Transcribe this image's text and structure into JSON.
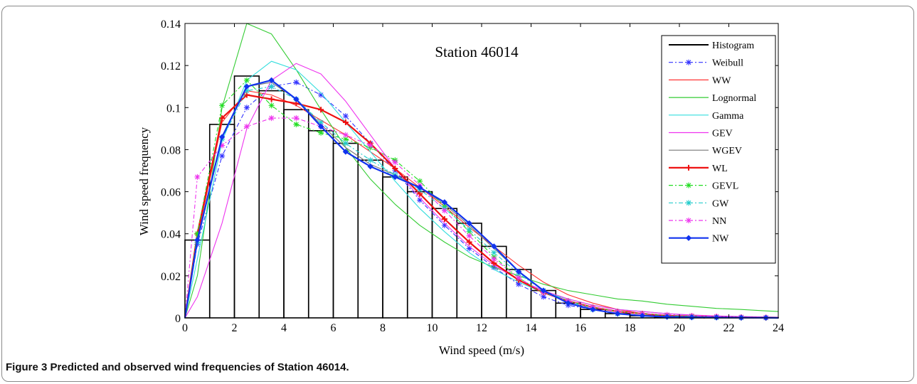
{
  "caption": {
    "label": "Figure 3",
    "text": "Predicted and observed wind frequencies of Station 46014."
  },
  "chart_data": {
    "type": "line",
    "title": "Station 46014",
    "xlabel": "Wind speed (m/s)",
    "ylabel": "Wind speed frequency",
    "xlim": [
      0,
      24
    ],
    "ylim": [
      0,
      0.14
    ],
    "xticks": [
      0,
      2,
      4,
      6,
      8,
      10,
      12,
      14,
      16,
      18,
      20,
      22,
      24
    ],
    "yticks": [
      0,
      0.02,
      0.04,
      0.06,
      0.08,
      0.1,
      0.12,
      0.14
    ],
    "ytick_labels": [
      "0",
      "0.02",
      "0.04",
      "0.06",
      "0.08",
      "0.1",
      "0.12",
      "0.14"
    ],
    "grid": false,
    "legend_position": "top-right",
    "histogram": {
      "name": "Histogram",
      "color": "#000000",
      "bin_edges": [
        0,
        1,
        2,
        3,
        4,
        5,
        6,
        7,
        8,
        9,
        10,
        11,
        12,
        13,
        14,
        15,
        16,
        17,
        18,
        19,
        20,
        21,
        22,
        23,
        24
      ],
      "values": [
        0.037,
        0.092,
        0.115,
        0.108,
        0.099,
        0.089,
        0.083,
        0.075,
        0.067,
        0.06,
        0.052,
        0.045,
        0.034,
        0.023,
        0.013,
        0.007,
        0.004,
        0.002,
        0.001,
        0.0005,
        0.0003,
        0.0002,
        0.0001,
        0.0001
      ]
    },
    "x": [
      0,
      0.5,
      1.5,
      2.5,
      3.5,
      4.5,
      5.5,
      6.5,
      7.5,
      8.5,
      9.5,
      10.5,
      11.5,
      12.5,
      13.5,
      14.5,
      15.5,
      16.5,
      17.5,
      18.5,
      19.5,
      20.5,
      21.5,
      22.5,
      23.5,
      24
    ],
    "series": [
      {
        "name": "Weibull",
        "color": "#3333ff",
        "dash": "6,3,2,3",
        "marker": "star",
        "values": [
          0,
          0.035,
          0.077,
          0.1,
          0.11,
          0.112,
          0.106,
          0.096,
          0.083,
          0.07,
          0.056,
          0.044,
          0.033,
          0.024,
          0.016,
          0.01,
          0.006,
          0.004,
          0.002,
          0.001,
          0.0006,
          0.0003,
          0.0002,
          0.0001,
          5e-05,
          0
        ]
      },
      {
        "name": "WW",
        "color": "#ff3333",
        "dash": "",
        "marker": "none",
        "values": [
          0,
          0.038,
          0.093,
          0.108,
          0.106,
          0.101,
          0.094,
          0.087,
          0.079,
          0.071,
          0.062,
          0.053,
          0.043,
          0.034,
          0.025,
          0.017,
          0.011,
          0.007,
          0.004,
          0.002,
          0.001,
          0.0007,
          0.0004,
          0.0002,
          0.0001,
          0
        ]
      },
      {
        "name": "Lognormal",
        "color": "#33cc33",
        "dash": "",
        "marker": "none",
        "values": [
          0,
          0.02,
          0.1,
          0.14,
          0.135,
          0.118,
          0.099,
          0.081,
          0.066,
          0.054,
          0.044,
          0.036,
          0.029,
          0.024,
          0.02,
          0.016,
          0.013,
          0.011,
          0.009,
          0.008,
          0.0065,
          0.0055,
          0.0045,
          0.004,
          0.0033,
          0.003
        ]
      },
      {
        "name": "Gamma",
        "color": "#33dddd",
        "dash": "",
        "marker": "none",
        "values": [
          0,
          0.028,
          0.084,
          0.113,
          0.122,
          0.118,
          0.107,
          0.093,
          0.079,
          0.065,
          0.052,
          0.041,
          0.031,
          0.023,
          0.017,
          0.012,
          0.009,
          0.006,
          0.004,
          0.003,
          0.002,
          0.0013,
          0.0009,
          0.0006,
          0.0004,
          0.0003
        ]
      },
      {
        "name": "GEV",
        "color": "#ee33ee",
        "dash": "",
        "marker": "none",
        "values": [
          0,
          0.01,
          0.045,
          0.09,
          0.113,
          0.121,
          0.116,
          0.103,
          0.087,
          0.071,
          0.057,
          0.045,
          0.034,
          0.025,
          0.018,
          0.013,
          0.009,
          0.006,
          0.004,
          0.003,
          0.002,
          0.0014,
          0.0009,
          0.0006,
          0.0004,
          0.0003
        ]
      },
      {
        "name": "WGEV",
        "color": "#777777",
        "dash": "",
        "marker": "none",
        "values": [
          0,
          0.036,
          0.086,
          0.11,
          0.112,
          0.104,
          0.092,
          0.081,
          0.073,
          0.068,
          0.062,
          0.054,
          0.044,
          0.033,
          0.022,
          0.013,
          0.007,
          0.004,
          0.002,
          0.001,
          0.0006,
          0.0003,
          0.0002,
          0.0001,
          5e-05,
          0
        ]
      },
      {
        "name": "WL",
        "color": "#ee1111",
        "dash": "",
        "marker": "plus",
        "width": 2.2,
        "values": [
          0,
          0.04,
          0.095,
          0.106,
          0.104,
          0.102,
          0.099,
          0.093,
          0.083,
          0.071,
          0.059,
          0.047,
          0.036,
          0.026,
          0.018,
          0.012,
          0.008,
          0.005,
          0.003,
          0.002,
          0.001,
          0.0007,
          0.0004,
          0.0002,
          0.0001,
          0
        ]
      },
      {
        "name": "GEVL",
        "color": "#22dd22",
        "dash": "6,3,2,3",
        "marker": "star",
        "values": [
          0,
          0.04,
          0.101,
          0.113,
          0.101,
          0.092,
          0.088,
          0.085,
          0.081,
          0.075,
          0.065,
          0.053,
          0.041,
          0.029,
          0.019,
          0.012,
          0.008,
          0.005,
          0.003,
          0.002,
          0.001,
          0.0007,
          0.0004,
          0.0002,
          0.0001,
          0
        ]
      },
      {
        "name": "GW",
        "color": "#22cccc",
        "dash": "6,3,2,3",
        "marker": "star",
        "values": [
          0,
          0.036,
          0.085,
          0.108,
          0.11,
          0.104,
          0.093,
          0.083,
          0.075,
          0.068,
          0.061,
          0.052,
          0.042,
          0.031,
          0.021,
          0.013,
          0.008,
          0.004,
          0.002,
          0.001,
          0.0006,
          0.0003,
          0.0002,
          0.0001,
          5e-05,
          0
        ]
      },
      {
        "name": "NN",
        "color": "#ee33ee",
        "dash": "6,3,2,3",
        "marker": "star",
        "values": [
          0,
          0.067,
          0.082,
          0.091,
          0.095,
          0.095,
          0.091,
          0.087,
          0.082,
          0.074,
          0.063,
          0.051,
          0.039,
          0.028,
          0.019,
          0.012,
          0.008,
          0.005,
          0.003,
          0.002,
          0.0015,
          0.001,
          0.0007,
          0.0004,
          0.0002,
          0
        ]
      },
      {
        "name": "NW",
        "color": "#1133ee",
        "dash": "",
        "marker": "diamond",
        "width": 2.2,
        "values": [
          0,
          0.037,
          0.086,
          0.11,
          0.113,
          0.104,
          0.091,
          0.079,
          0.072,
          0.067,
          0.062,
          0.055,
          0.045,
          0.034,
          0.022,
          0.013,
          0.007,
          0.004,
          0.002,
          0.001,
          0.0005,
          0.0003,
          0.0002,
          0.0001,
          5e-05,
          0
        ]
      }
    ]
  }
}
